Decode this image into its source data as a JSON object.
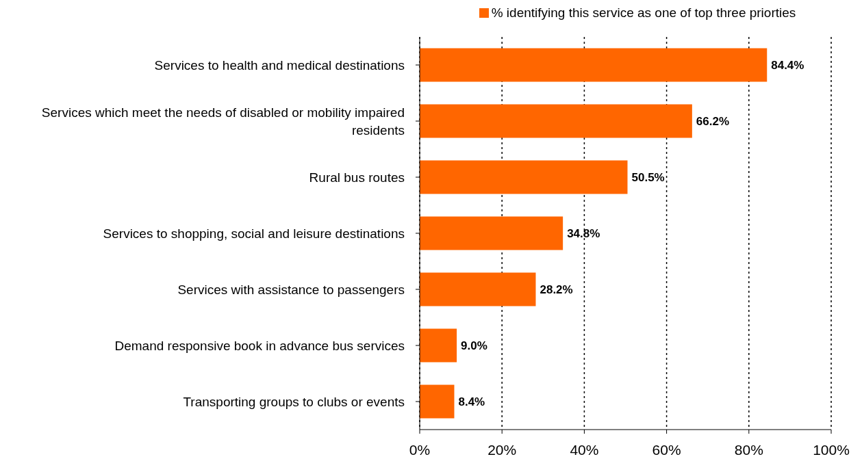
{
  "chart_data": {
    "type": "bar",
    "orientation": "horizontal",
    "categories": [
      "Services to health and medical destinations",
      "Services which meet the needs of disabled or mobility impaired residents",
      "Rural bus routes",
      "Services to shopping, social and leisure destinations",
      "Services with assistance to passengers",
      "Demand responsive book in advance bus services",
      "Transporting groups to clubs or events"
    ],
    "series": [
      {
        "name": "% identifying this service as one of top three priorties",
        "color": "#ff6600",
        "values": [
          84.4,
          66.2,
          50.5,
          34.8,
          28.2,
          9.0,
          8.4
        ],
        "value_labels": [
          "84.4%",
          "66.2%",
          "50.5%",
          "34.8%",
          "28.2%",
          "9.0%",
          "8.4%"
        ]
      }
    ],
    "xlim": [
      0,
      100
    ],
    "xticks": [
      {
        "value": 0,
        "label": "0%"
      },
      {
        "value": 20,
        "label": "20%"
      },
      {
        "value": 40,
        "label": "40%"
      },
      {
        "value": 60,
        "label": "60%"
      },
      {
        "value": 80,
        "label": "80%"
      },
      {
        "value": 100,
        "label": "100%"
      }
    ],
    "grid": "x",
    "legend": "top"
  }
}
